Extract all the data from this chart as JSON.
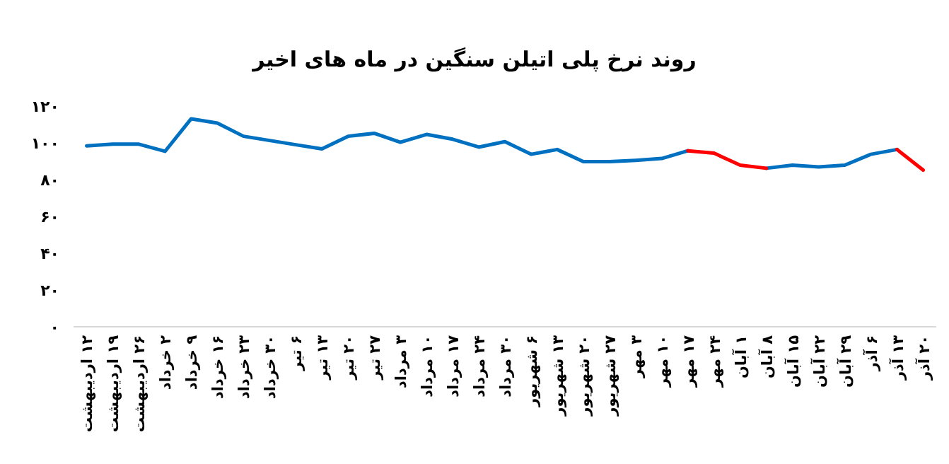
{
  "chart_data": {
    "type": "line",
    "title": "روند نرخ پلی اتیلن سنگین در ماه های اخیر",
    "categories": [
      "۱۲ اردیبهشت",
      "۱۹ اردیبهشت",
      "۲۶ اردیبهشت",
      "۲ خرداد",
      "۹ خرداد",
      "۱۶ خرداد",
      "۲۳ خرداد",
      "۳۰ خرداد",
      "۶ تیر",
      "۱۳ تیر",
      "۲۰ تیر",
      "۲۷ تیر",
      "۳ مرداد",
      "۱۰ مرداد",
      "۱۷ مرداد",
      "۲۴ مرداد",
      "۳۰ مرداد",
      "۶ شهریور",
      "۱۳ شهریور",
      "۲۰ شهریور",
      "۲۷ شهریور",
      "۳ مهر",
      "۱۰ مهر",
      "۱۷ مهر",
      "۲۴ مهر",
      "۱ آبان",
      "۸ آبان",
      "۱۵ آبان",
      "۲۲ آبان",
      "۲۹ آبان",
      "۶ آذر",
      "۱۳ آذر",
      "۲۰ آذر"
    ],
    "series": [
      {
        "color": "#0070c0",
        "values": [
          98.4,
          99.3,
          99.3,
          95.4,
          113.1,
          110.8,
          103.6,
          101.3,
          99.0,
          96.7,
          103.6,
          105.2,
          100.3,
          104.6,
          102.0,
          97.7,
          100.7,
          93.8,
          96.4,
          89.8,
          89.8,
          90.5,
          91.5,
          95.7,
          null,
          null,
          86.2,
          87.9,
          86.9,
          87.9,
          93.8,
          96.4,
          null
        ]
      },
      {
        "color": "#ff0000",
        "values": [
          null,
          null,
          null,
          null,
          null,
          null,
          null,
          null,
          null,
          null,
          null,
          null,
          null,
          null,
          null,
          null,
          null,
          null,
          null,
          null,
          null,
          null,
          null,
          95.7,
          94.4,
          87.9,
          86.2,
          null,
          null,
          null,
          null,
          96.4,
          85.2
        ]
      }
    ],
    "ylim": [
      0,
      120
    ],
    "yticks": [
      {
        "value": 0,
        "label": "۰"
      },
      {
        "value": 20,
        "label": "۲۰"
      },
      {
        "value": 40,
        "label": "۴۰"
      },
      {
        "value": 60,
        "label": "۶۰"
      },
      {
        "value": 80,
        "label": "۸۰"
      },
      {
        "value": 100,
        "label": "۱۰۰"
      },
      {
        "value": 120,
        "label": "۱۲۰"
      }
    ],
    "grid": false,
    "marker": "none",
    "line_style": "solid"
  }
}
